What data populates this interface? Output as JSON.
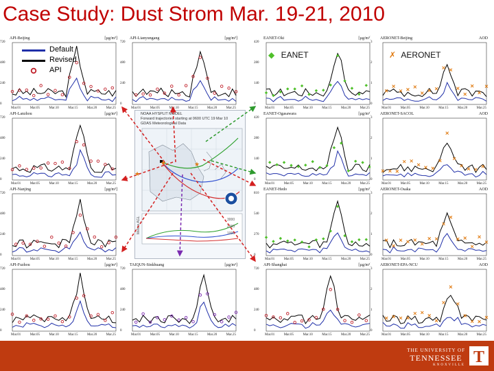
{
  "title": "Case Study: Dust Strom Mar. 19-21, 2010",
  "legend": {
    "default_label": "Default",
    "revised_label": "Revised",
    "api_label": "API",
    "eanet_label": "EANET",
    "aeronet_label": "AERONET"
  },
  "colors": {
    "title": "#c00000",
    "default_line": "#1f2fa8",
    "revised_line": "#000000",
    "api_marker": "#c0202a",
    "eanet_marker": "#4fc02a",
    "aeronet_marker": "#e07a10",
    "purple_marker": "#7a2ab0",
    "footer": "#bf3b10",
    "arrow_red": "#d42020",
    "arrow_green": "#2e9a2e",
    "arrow_purple": "#7a2ab0"
  },
  "panels": [
    {
      "id": "p00",
      "title": "API-Beijing",
      "unit": "[µg/m³]",
      "yticks": [
        "720",
        "480",
        "240",
        "0"
      ],
      "xticks": [
        "Mar.01",
        "Mar.05",
        "Mar.10",
        "Mar.15",
        "Mar.20",
        "Mar.25"
      ],
      "marker": "circle",
      "marker_color": "api_marker"
    },
    {
      "id": "p01",
      "title": "API-Lianyungang",
      "unit": "[µg/m³]",
      "yticks": [
        "720",
        "480",
        "240",
        "0"
      ],
      "xticks": [
        "Mar.01",
        "Mar.05",
        "Mar.10",
        "Mar.15",
        "Mar.20",
        "Mar.25"
      ],
      "marker": "circle",
      "marker_color": "api_marker"
    },
    {
      "id": "p02",
      "title": "EANET-Oki",
      "unit": "[µg/m³]",
      "yticks": [
        "420",
        "280",
        "140",
        "0"
      ],
      "xticks": [
        "Mar.01",
        "Mar.05",
        "Mar.10",
        "Mar.15",
        "Mar.20",
        "Mar.25"
      ],
      "marker": "diamond",
      "marker_color": "eanet_marker"
    },
    {
      "id": "p03",
      "title": "AERONET-Beijing",
      "unit": "AOD",
      "yticks": [
        "3",
        "2",
        "1",
        "0"
      ],
      "xticks": [
        "Mar.01",
        "Mar.05",
        "Mar.10",
        "Mar.15",
        "Mar.20",
        "Mar.25"
      ],
      "marker": "cross",
      "marker_color": "aeronet_marker"
    },
    {
      "id": "p10",
      "title": "API-Lanzhou",
      "unit": "[µg/m³]",
      "yticks": [
        "720",
        "480",
        "240",
        "0"
      ],
      "xticks": [
        "Mar.01",
        "Mar.05",
        "Mar.10",
        "Mar.15",
        "Mar.20",
        "Mar.25"
      ],
      "marker": "circle",
      "marker_color": "api_marker"
    },
    {
      "id": "p12",
      "title": "EANET-Ogasawara",
      "unit": "[µg/m³]",
      "yticks": [
        "420",
        "280",
        "140",
        "0"
      ],
      "xticks": [
        "Mar.01",
        "Mar.05",
        "Mar.10",
        "Mar.15",
        "Mar.20",
        "Mar.25"
      ],
      "marker": "diamond",
      "marker_color": "eanet_marker"
    },
    {
      "id": "p13",
      "title": "AERONET-SACOL",
      "unit": "AOD",
      "yticks": [
        "3",
        "2",
        "1",
        "0"
      ],
      "xticks": [
        "Mar.01",
        "Mar.05",
        "Mar.10",
        "Mar.15",
        "Mar.20",
        "Mar.25"
      ],
      "marker": "cross",
      "marker_color": "aeronet_marker"
    },
    {
      "id": "p20",
      "title": "API-Nanjing",
      "unit": "[µg/m³]",
      "yticks": [
        "720",
        "480",
        "240",
        "0"
      ],
      "xticks": [
        "Mar.01",
        "Mar.05",
        "Mar.10",
        "Mar.15",
        "Mar.20",
        "Mar.25"
      ],
      "marker": "circle",
      "marker_color": "api_marker"
    },
    {
      "id": "p22",
      "title": "EANET-Hedo",
      "unit": "[µg/m³]",
      "yticks": [
        "810",
        "540",
        "270",
        "0"
      ],
      "xticks": [
        "Mar.01",
        "Mar.05",
        "Mar.10",
        "Mar.15",
        "Mar.20",
        "Mar.25"
      ],
      "marker": "diamond",
      "marker_color": "eanet_marker"
    },
    {
      "id": "p23",
      "title": "AERONET-Osaka",
      "unit": "AOD",
      "yticks": [
        "3",
        "2",
        "1",
        "0"
      ],
      "xticks": [
        "Mar.01",
        "Mar.05",
        "Mar.10",
        "Mar.15",
        "Mar.20",
        "Mar.25"
      ],
      "marker": "cross",
      "marker_color": "aeronet_marker"
    },
    {
      "id": "p30",
      "title": "API-Fuzhou",
      "unit": "[µg/m³]",
      "yticks": [
        "720",
        "480",
        "240",
        "0"
      ],
      "xticks": [
        "Mar.01",
        "Mar.05",
        "Mar.10",
        "Mar.15",
        "Mar.20",
        "Mar.25"
      ],
      "marker": "circle",
      "marker_color": "api_marker"
    },
    {
      "id": "p31",
      "title": "TAIQUN-Sinkhuang",
      "unit": "[µg/m³]",
      "yticks": [
        "720",
        "480",
        "240",
        "0"
      ],
      "xticks": [
        "Mar.01",
        "Mar.05",
        "Mar.10",
        "Mar.15",
        "Mar.20",
        "Mar.25"
      ],
      "marker": "circle",
      "marker_color": "purple_marker"
    },
    {
      "id": "p32",
      "title": "API-Shanghai",
      "unit": "[µg/m³]",
      "yticks": [
        "720",
        "480",
        "240",
        "0"
      ],
      "xticks": [
        "Mar.01",
        "Mar.05",
        "Mar.10",
        "Mar.15",
        "Mar.20",
        "Mar.25"
      ],
      "marker": "circle",
      "marker_color": "api_marker"
    },
    {
      "id": "p33",
      "title": "AERONET-EPA-NCU",
      "unit": "AOD",
      "yticks": [
        "3",
        "2",
        "1",
        "0"
      ],
      "xticks": [
        "Mar.01",
        "Mar.05",
        "Mar.10",
        "Mar.15",
        "Mar.20",
        "Mar.25"
      ],
      "marker": "cross",
      "marker_color": "aeronet_marker"
    }
  ],
  "map": {
    "line1": "NOAA HYSPLIT MODEL",
    "line2": "Forward trajectories starting at 0600 UTC 19 Mar 10",
    "line3": "GDAS Meteorological Data",
    "axis_label": "Meters AGL",
    "levels": [
      "3000",
      "2000",
      "1000"
    ]
  },
  "university": {
    "line1": "THE UNIVERSITY OF",
    "line2": "TENNESSEE",
    "line3": "KNOXVILLE",
    "logo": "T"
  }
}
